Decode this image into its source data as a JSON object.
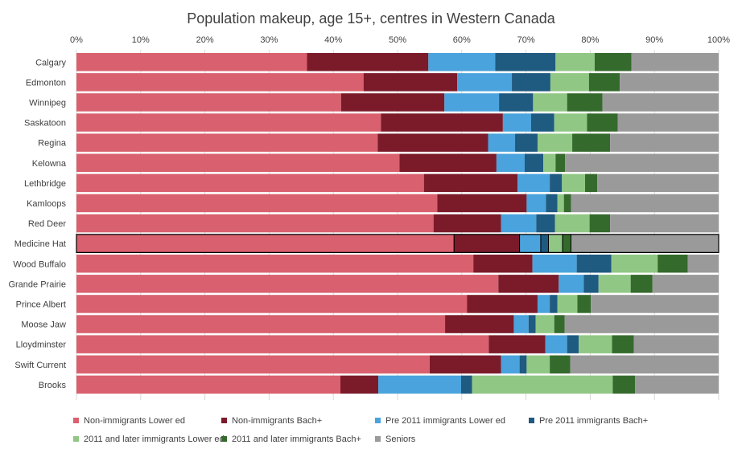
{
  "chart_data": {
    "type": "bar",
    "orientation": "horizontal",
    "stacked": "percent",
    "title": "Population makeup, age 15+, centres in Western Canada",
    "xlim": [
      0,
      100
    ],
    "x_ticks": [
      "0%",
      "10%",
      "20%",
      "30%",
      "40%",
      "50%",
      "60%",
      "70%",
      "80%",
      "90%",
      "100%"
    ],
    "grid": true,
    "legend_position": "bottom",
    "categories": [
      "Calgary",
      "Edmonton",
      "Winnipeg",
      "Saskatoon",
      "Regina",
      "Kelowna",
      "Lethbridge",
      "Kamloops",
      "Red Deer",
      "Medicine Hat",
      "Wood Buffalo",
      "Grande Prairie",
      "Prince Albert",
      "Moose Jaw",
      "Lloydminster",
      "Swift Current",
      "Brooks"
    ],
    "highlighted_category": "Medicine Hat",
    "series": [
      {
        "name": "Non-immigrants Lower ed",
        "color": "#d9606e",
        "values": [
          35.9,
          44.7,
          41.2,
          47.4,
          46.9,
          50.3,
          54.1,
          56.2,
          55.6,
          58.8,
          61.8,
          65.7,
          60.8,
          57.4,
          64.2,
          55.0,
          41.1
        ]
      },
      {
        "name": "Non-immigrants Bach+",
        "color": "#7b1b2a",
        "values": [
          18.9,
          14.6,
          16.1,
          19.0,
          17.2,
          15.1,
          14.6,
          13.9,
          10.5,
          10.2,
          9.2,
          9.4,
          11.0,
          10.7,
          8.8,
          11.1,
          5.9
        ]
      },
      {
        "name": "Pre 2011 immigrants Lower ed",
        "color": "#4aa3dc",
        "values": [
          10.4,
          8.5,
          8.5,
          4.4,
          4.2,
          4.4,
          5.0,
          3.0,
          5.5,
          3.3,
          6.9,
          3.9,
          1.9,
          2.3,
          3.4,
          2.9,
          12.9
        ]
      },
      {
        "name": "Pre 2011 immigrants Bach+",
        "color": "#1f5a80",
        "values": [
          9.4,
          6.0,
          5.3,
          3.6,
          3.5,
          2.9,
          1.9,
          1.8,
          2.9,
          1.2,
          5.4,
          2.3,
          1.2,
          1.1,
          1.8,
          1.1,
          1.7
        ]
      },
      {
        "name": "2011 and later immigrants Lower ed",
        "color": "#91c784",
        "values": [
          6.1,
          6.0,
          5.3,
          5.1,
          5.4,
          1.9,
          3.6,
          1.0,
          5.4,
          2.2,
          7.2,
          5.0,
          3.1,
          2.9,
          5.2,
          3.6,
          21.9
        ]
      },
      {
        "name": "2011 and later immigrants Bach+",
        "color": "#356a2d",
        "values": [
          5.7,
          4.8,
          5.5,
          4.8,
          5.9,
          1.5,
          1.9,
          1.1,
          3.2,
          1.3,
          4.7,
          3.4,
          2.1,
          1.6,
          3.4,
          3.2,
          3.5
        ]
      },
      {
        "name": "Seniors",
        "color": "#9a9a9a",
        "values": [
          13.6,
          15.4,
          18.1,
          15.7,
          16.9,
          23.9,
          18.9,
          23.0,
          16.9,
          23.0,
          4.8,
          10.3,
          19.9,
          24.0,
          13.2,
          23.1,
          13.0
        ]
      }
    ]
  }
}
